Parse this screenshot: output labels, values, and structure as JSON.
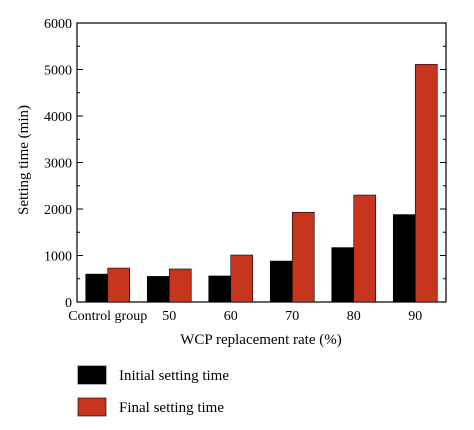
{
  "chart_data": {
    "type": "bar",
    "xlabel": "WCP replacement rate (%)",
    "ylabel": "Setting time (min)",
    "categories": [
      "Control group",
      "50",
      "60",
      "70",
      "80",
      "90"
    ],
    "ylim": [
      0,
      6000
    ],
    "yticks": [
      0,
      1000,
      2000,
      3000,
      4000,
      5000,
      6000
    ],
    "series": [
      {
        "name": "Initial setting time",
        "color": "#000000",
        "values": [
          600,
          550,
          560,
          880,
          1170,
          1880
        ]
      },
      {
        "name": "Final setting time",
        "color": "#c8351e",
        "values": [
          730,
          710,
          1010,
          1930,
          2300,
          5110
        ]
      }
    ],
    "legend_position": "bottom-left, below plot",
    "grid": false
  }
}
